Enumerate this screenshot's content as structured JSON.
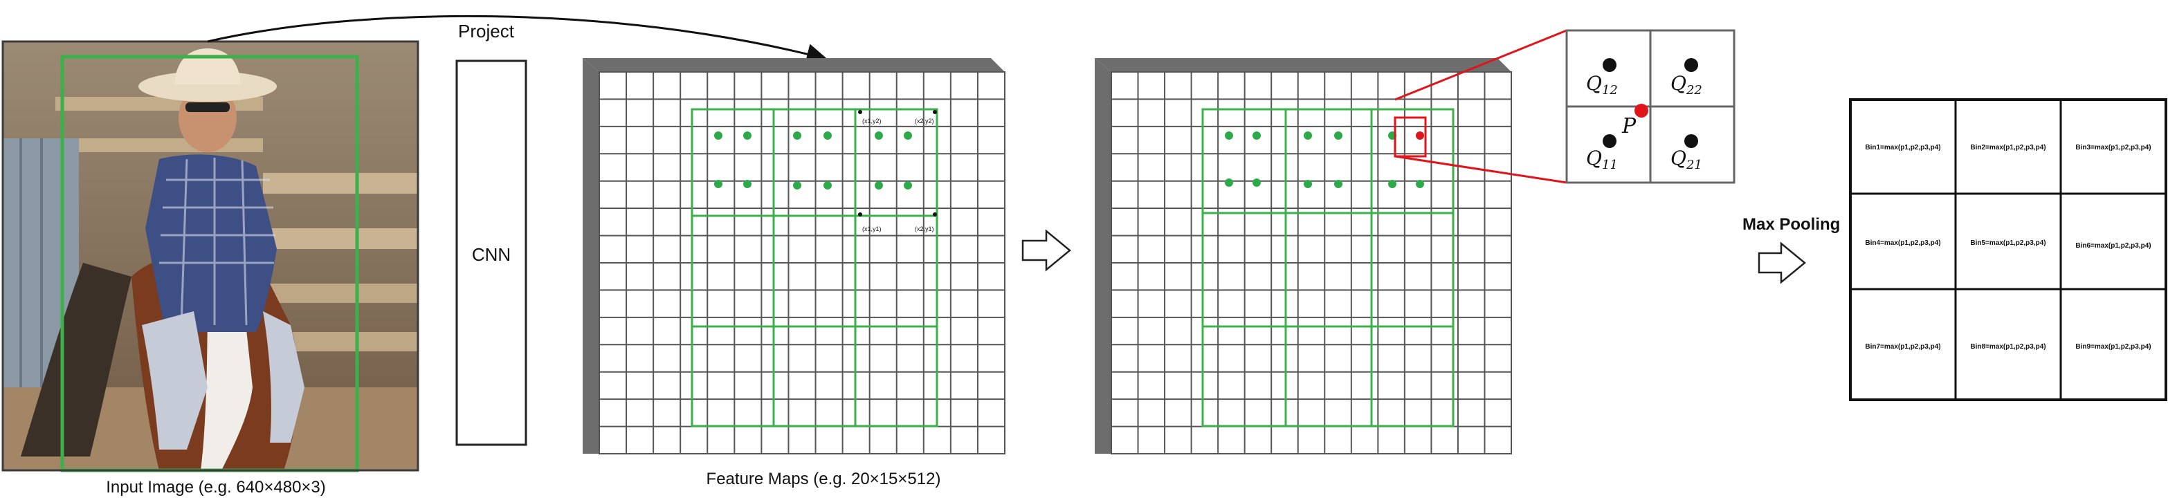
{
  "labels": {
    "project": "Project",
    "cnn": "CNN",
    "input_image": "Input Image (e.g. 640×480×3)",
    "feature_maps": "Feature Maps  (e.g. 20×15×512)",
    "max_pooling": "Max Pooling"
  },
  "coord_labels": {
    "x1y2": "(x1,y2)",
    "x2y2": "(x2,y2)",
    "x1y1": "(x1,y1)",
    "x2y1": "(x2,y1)"
  },
  "interp": {
    "q12": "Q",
    "q12_sub": "12",
    "q22": "Q",
    "q22_sub": "22",
    "q11": "Q",
    "q11_sub": "11",
    "q21": "Q",
    "q21_sub": "21",
    "p": "P"
  },
  "bins": [
    "Bin1=max(p1,p2,p3,p4)",
    "Bin2=max(p1,p2,p3,p4)",
    "Bin3=max(p1,p2,p3,p4)",
    "Bin4=max(p1,p2,p3,p4)",
    "Bin5=max(p1,p2,p3,p4)",
    "Bin6=max(p1,p2,p3,p4)",
    "Bin7=max(p1,p2,p3,p4)",
    "Bin8=max(p1,p2,p3,p4)",
    "Bin9=max(p1,p2,p3,p4)"
  ],
  "colors": {
    "roi_green": "#3cb04a",
    "point_green": "#2faa4a",
    "highlight_red": "#e0141b",
    "grid_gray": "#555555",
    "shade": "#6d6d6d"
  }
}
